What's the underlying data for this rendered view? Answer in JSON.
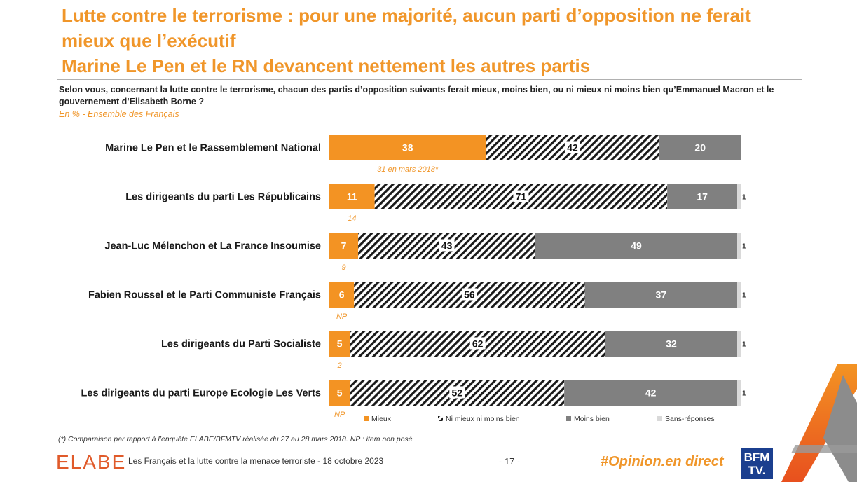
{
  "title": {
    "line1": "Lutte contre le terrorisme : pour une majorité, aucun parti d’opposition ne ferait",
    "line2": "mieux que l’exécutif",
    "line3": "Marine Le Pen et le RN devancent nettement les autres partis"
  },
  "question": "Selon vous, concernant la lutte contre le terrorisme, chacun des partis d’opposition suivants ferait mieux, moins bien, ou ni mieux ni moins bien qu’Emmanuel Macron et le gouvernement d’Elisabeth Borne ?",
  "basis": "En % - Ensemble des Français",
  "chart_data": {
    "type": "bar",
    "orientation": "horizontal",
    "stacked": true,
    "xlim": [
      0,
      100
    ],
    "categories": [
      "Marine Le Pen et le Rassemblement National",
      "Les dirigeants du parti Les Républicains",
      "Jean-Luc Mélenchon et La France Insoumise",
      "Fabien Roussel et le Parti Communiste Français",
      "Les dirigeants du Parti Socialiste",
      "Les dirigeants du parti Europe Ecologie Les Verts"
    ],
    "series": [
      {
        "name": "Mieux",
        "color": "#f39323",
        "pattern": "solid",
        "values": [
          38,
          11,
          7,
          6,
          5,
          5
        ]
      },
      {
        "name": "Ni mieux ni moins bien",
        "color": "#1a1a1a",
        "pattern": "hatched",
        "values": [
          42,
          71,
          43,
          56,
          62,
          52
        ]
      },
      {
        "name": "Moins bien",
        "color": "#808080",
        "pattern": "solid",
        "values": [
          20,
          17,
          49,
          37,
          32,
          42
        ]
      },
      {
        "name": "Sans-réponses",
        "color": "#d9d9d9",
        "pattern": "solid",
        "values": [
          0,
          1,
          1,
          1,
          1,
          1
        ]
      }
    ],
    "comparison_notes": [
      "31 en mars 2018*",
      "14",
      "9",
      "NP",
      "2",
      "NP"
    ]
  },
  "footnote": "(*) Comparaison par rapport à l’enquête ELABE/BFMTV réalisée du 27 au 28 mars 2018.   NP : item non posé",
  "footer": {
    "logo": "ELABE",
    "text": "Les Français et la lutte contre la menace terroriste - 18 octobre 2023",
    "page": "- 17 -",
    "hashtag": "#Opinion.en direct",
    "bfm_line1": "BFM",
    "bfm_line2": "TV."
  }
}
